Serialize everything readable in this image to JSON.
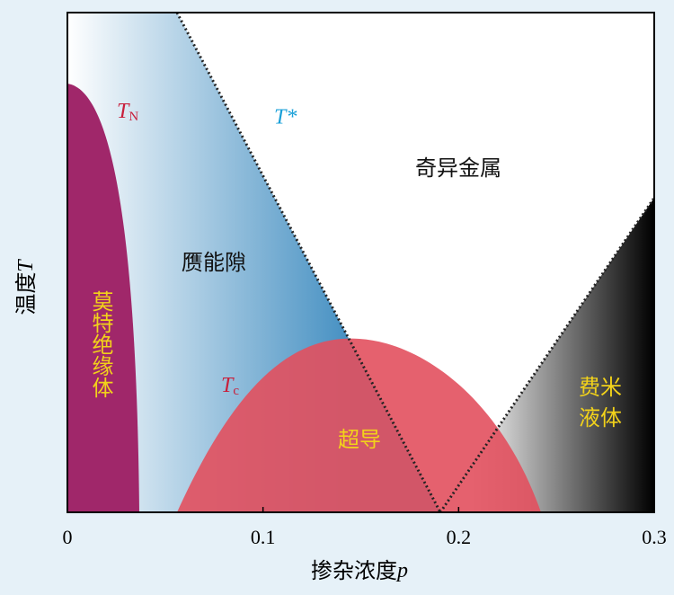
{
  "chart_data": {
    "type": "phase-diagram",
    "y_label": {
      "text": "温度",
      "symbol": "T"
    },
    "x_label": {
      "text": "掺杂浓度",
      "symbol": "p"
    },
    "xlim": [
      0,
      0.3
    ],
    "xticks": [
      0,
      0.1,
      0.2,
      0.3
    ],
    "regions": {
      "mott": "莫特绝缘体",
      "pseudogap": "赝能隙",
      "strange_metal": "奇异金属",
      "superconductor": "超导",
      "fermi_liquid": [
        "费米",
        "液体"
      ]
    },
    "lines": {
      "neel": {
        "symbol": "T",
        "subscript": "N",
        "color": "#c8203c"
      },
      "pseudogap": {
        "symbol": "T*",
        "color": "#1aa0d8"
      },
      "superconducting": {
        "symbol": "T",
        "subscript": "c",
        "color": "#c8203c"
      }
    },
    "label_color": "#f2d21a"
  }
}
